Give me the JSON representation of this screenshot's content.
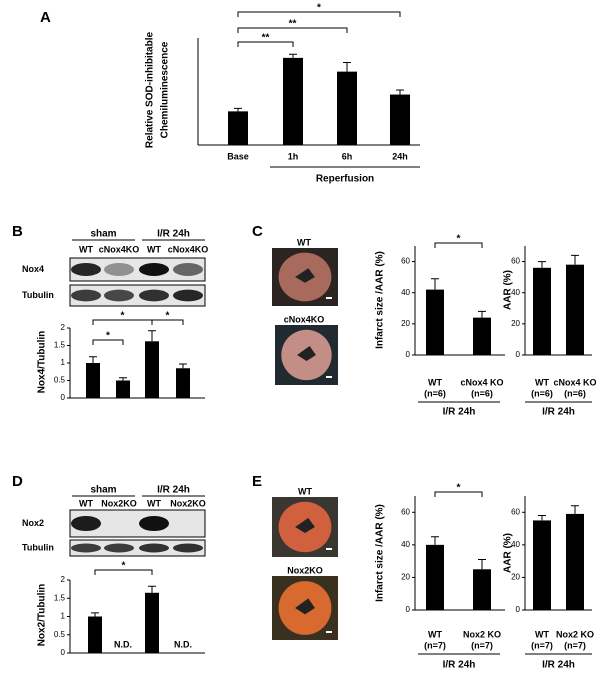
{
  "panel_labels": [
    "A",
    "B",
    "C",
    "D",
    "E"
  ],
  "blots": [
    {
      "headers": [
        "sham",
        "I/R 24h"
      ],
      "lanes": [
        "WT",
        "cNox4KO",
        "WT",
        "cNox4KO"
      ],
      "rows": [
        "Nox4",
        "Tubulin"
      ]
    },
    {
      "headers": [
        "sham",
        "I/R 24h"
      ],
      "lanes": [
        "WT",
        "Nox2KO",
        "WT",
        "Nox2KO"
      ],
      "rows": [
        "Nox2",
        "Tubulin"
      ]
    }
  ],
  "photos": [
    {
      "labels": [
        "WT",
        "cNox4KO"
      ]
    },
    {
      "labels": [
        "WT",
        "Nox2KO"
      ]
    }
  ],
  "chart_data": [
    {
      "type": "bar",
      "ylabel": [
        "Relative SOD-inhibitable",
        "Chemiluminescence"
      ],
      "categories": [
        "Base",
        "1h",
        "6h",
        "24h"
      ],
      "values": [
        1.1,
        2.85,
        2.4,
        1.65
      ],
      "errors": [
        0.1,
        0.12,
        0.3,
        0.15
      ],
      "color": "#000000",
      "ylim": [
        0,
        3.5
      ],
      "x_group_label": "Reperfusion",
      "annotations": [
        "*",
        "**",
        "**"
      ]
    },
    {
      "type": "bar",
      "ylabel": "Nox4/Tubulin",
      "categories": [
        null,
        null,
        null,
        null
      ],
      "values": [
        1.0,
        0.5,
        1.62,
        0.85
      ],
      "errors": [
        0.18,
        0.08,
        0.3,
        0.12
      ],
      "color": "#000000",
      "ylim": [
        0,
        2
      ],
      "yticks": [
        0,
        0.5,
        1,
        1.5,
        2
      ],
      "annotations": [
        "*",
        "*",
        "*"
      ]
    },
    {
      "type": "bar",
      "ylabel": "Infarct size /AAR (%)",
      "categories": [
        "WT",
        "cNox4 KO"
      ],
      "sample_sizes": [
        "(n=6)",
        "(n=6)"
      ],
      "values": [
        42,
        24
      ],
      "errors": [
        7,
        4
      ],
      "color": "#000000",
      "ylim": [
        0,
        70
      ],
      "yticks": [
        0,
        20,
        40,
        60
      ],
      "x_group_label": "I/R 24h",
      "annotations": [
        "*"
      ]
    },
    {
      "type": "bar",
      "ylabel": "AAR (%)",
      "categories": [
        "WT",
        "cNox4 KO"
      ],
      "sample_sizes": [
        "(n=6)",
        "(n=6)"
      ],
      "values": [
        56,
        58
      ],
      "errors": [
        4,
        6
      ],
      "color": "#000000",
      "ylim": [
        0,
        70
      ],
      "yticks": [
        0,
        20,
        40,
        60
      ],
      "x_group_label": "I/R 24h"
    },
    {
      "type": "bar",
      "ylabel": "Nox2/Tubulin",
      "categories": [
        null,
        null,
        null,
        null
      ],
      "values": [
        1.0,
        null,
        1.65,
        null
      ],
      "value_labels": [
        null,
        "N.D.",
        null,
        "N.D."
      ],
      "errors": [
        0.1,
        null,
        0.18,
        null
      ],
      "color": "#000000",
      "ylim": [
        0,
        2
      ],
      "yticks": [
        0,
        0.5,
        1,
        1.5,
        2
      ],
      "annotations": [
        "*"
      ]
    },
    {
      "type": "bar",
      "ylabel": "Infarct size /AAR (%)",
      "categories": [
        "WT",
        "Nox2 KO"
      ],
      "sample_sizes": [
        "(n=7)",
        "(n=7)"
      ],
      "values": [
        40,
        25
      ],
      "errors": [
        5,
        6
      ],
      "color": "#000000",
      "ylim": [
        0,
        70
      ],
      "yticks": [
        0,
        20,
        40,
        60
      ],
      "x_group_label": "I/R 24h",
      "annotations": [
        "*"
      ]
    },
    {
      "type": "bar",
      "ylabel": "AAR (%)",
      "categories": [
        "WT",
        "Nox2 KO"
      ],
      "sample_sizes": [
        "(n=7)",
        "(n=7)"
      ],
      "values": [
        55,
        59
      ],
      "errors": [
        3,
        5
      ],
      "color": "#000000",
      "ylim": [
        0,
        70
      ],
      "yticks": [
        0,
        20,
        40,
        60
      ],
      "x_group_label": "I/R 24h"
    }
  ]
}
